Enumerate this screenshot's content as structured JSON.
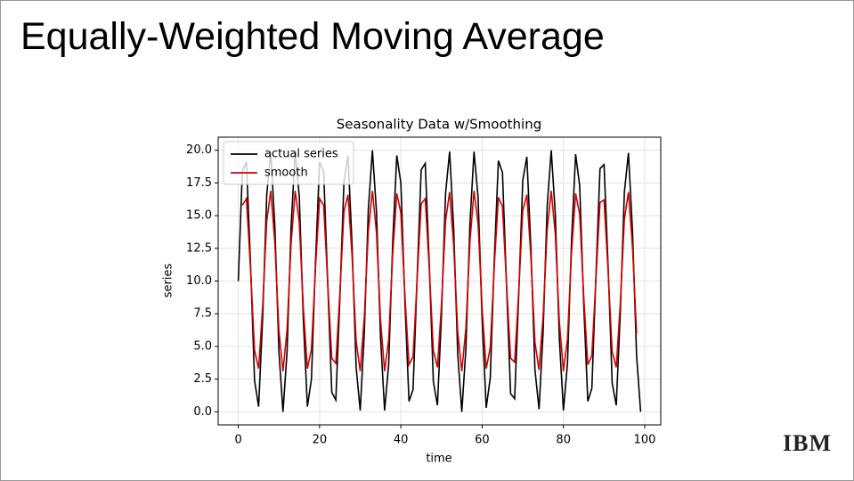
{
  "slide": {
    "title": "Equally-Weighted Moving Average",
    "logo": "IBM"
  },
  "chart_data": {
    "type": "line",
    "title": "Seasonality Data w/Smoothing",
    "xlabel": "time",
    "ylabel": "series",
    "x": [
      0,
      1,
      2,
      3,
      4,
      5,
      6,
      7,
      8,
      9,
      10,
      11,
      12,
      13,
      14,
      15,
      16,
      17,
      18,
      19,
      20,
      21,
      22,
      23,
      24,
      25,
      26,
      27,
      28,
      29,
      30,
      31,
      32,
      33,
      34,
      35,
      36,
      37,
      38,
      39,
      40,
      41,
      42,
      43,
      44,
      45,
      46,
      47,
      48,
      49,
      50,
      51,
      52,
      53,
      54,
      55,
      56,
      57,
      58,
      59,
      60,
      61,
      62,
      63,
      64,
      65,
      66,
      67,
      68,
      69,
      70,
      71,
      72,
      73,
      74,
      75,
      76,
      77,
      78,
      79,
      80,
      81,
      82,
      83,
      84,
      85,
      86,
      87,
      88,
      89,
      90,
      91,
      92,
      93,
      94,
      95,
      96,
      97,
      98,
      99
    ],
    "series": [
      {
        "name": "actual series",
        "color": "#000000",
        "values": [
          10.0,
          18.4,
          19.1,
          11.4,
          2.4,
          0.4,
          7.2,
          16.6,
          19.9,
          14.1,
          4.6,
          0.0,
          4.6,
          14.2,
          19.9,
          16.5,
          7.1,
          0.4,
          2.5,
          11.5,
          19.1,
          18.4,
          9.9,
          1.5,
          0.9,
          8.7,
          17.6,
          19.6,
          12.7,
          3.4,
          0.1,
          6.0,
          15.5,
          20.0,
          15.3,
          5.7,
          0.1,
          3.6,
          13.0,
          19.6,
          17.5,
          8.4,
          0.8,
          1.7,
          10.2,
          18.5,
          19.0,
          11.2,
          2.3,
          0.5,
          7.4,
          16.7,
          19.9,
          14.0,
          4.4,
          0.0,
          4.8,
          14.4,
          19.9,
          16.4,
          7.0,
          0.3,
          2.6,
          11.7,
          19.2,
          18.3,
          9.7,
          1.4,
          1.0,
          8.9,
          17.7,
          19.5,
          12.5,
          3.2,
          0.2,
          6.1,
          15.7,
          20.0,
          15.1,
          5.6,
          0.1,
          3.7,
          13.1,
          19.7,
          17.3,
          8.2,
          0.8,
          1.8,
          10.4,
          18.6,
          18.9,
          11.1,
          2.2,
          0.5,
          7.6,
          16.8,
          19.8,
          13.8,
          4.3,
          0.0
        ]
      },
      {
        "name": "smooth",
        "color": "#d40000",
        "values": [
          null,
          15.8,
          16.3,
          11.0,
          4.7,
          3.3,
          8.1,
          14.6,
          16.9,
          12.9,
          6.2,
          3.1,
          6.3,
          12.9,
          16.9,
          14.5,
          8.0,
          3.3,
          4.8,
          11.0,
          16.3,
          15.8,
          9.9,
          4.1,
          3.7,
          9.1,
          15.3,
          16.6,
          11.9,
          5.4,
          3.1,
          7.2,
          13.8,
          16.9,
          13.7,
          7.0,
          3.1,
          5.5,
          12.1,
          16.7,
          15.2,
          8.9,
          3.6,
          4.2,
          10.1,
          15.9,
          16.3,
          10.9,
          4.7,
          3.4,
          8.2,
          14.6,
          16.8,
          12.7,
          6.1,
          3.1,
          6.4,
          13.0,
          16.9,
          14.4,
          7.9,
          3.3,
          4.9,
          11.2,
          16.4,
          15.7,
          9.8,
          4.1,
          3.8,
          9.2,
          15.4,
          16.6,
          11.8,
          5.3,
          3.2,
          7.3,
          13.9,
          16.9,
          13.6,
          6.9,
          3.1,
          5.6,
          12.2,
          16.7,
          15.1,
          8.8,
          3.6,
          4.3,
          10.2,
          16.0,
          16.2,
          10.7,
          4.6,
          3.4,
          8.3,
          14.7,
          16.8,
          12.6,
          6.0,
          null
        ]
      }
    ],
    "xlim": [
      -4.95,
      103.95
    ],
    "ylim": [
      -1,
      21
    ],
    "xticks": [
      0,
      20,
      40,
      60,
      80,
      100
    ],
    "yticks": [
      {
        "value": 0,
        "label": "0.0"
      },
      {
        "value": 2.5,
        "label": "2.5"
      },
      {
        "value": 5,
        "label": "5.0"
      },
      {
        "value": 7.5,
        "label": "7.5"
      },
      {
        "value": 10,
        "label": "10.0"
      },
      {
        "value": 12.5,
        "label": "12.5"
      },
      {
        "value": 15,
        "label": "15.0"
      },
      {
        "value": 17.5,
        "label": "17.5"
      },
      {
        "value": 20,
        "label": "20.0"
      }
    ],
    "grid": true,
    "legend": "upper left"
  }
}
